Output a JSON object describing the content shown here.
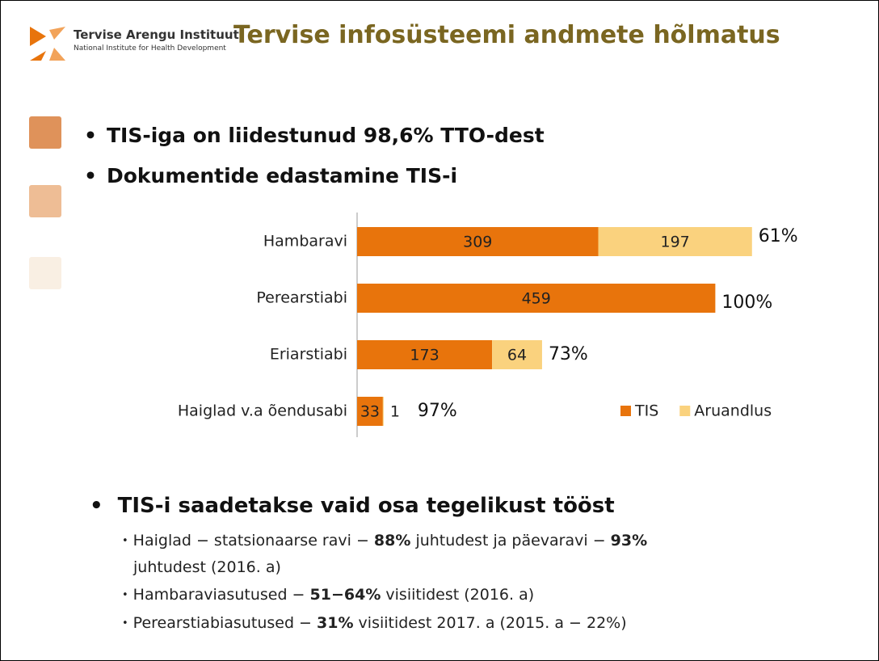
{
  "header": {
    "logo_name": "Tervise Arengu Instituut",
    "logo_subtitle": "National Institute for Health Development",
    "title": "Tervise infosüsteemi andmete hõlmatus"
  },
  "bullets": [
    "TIS-iga on liidestunud 98,6% TTO-dest",
    "Dokumentide edastamine TIS-i"
  ],
  "chart_data": {
    "type": "stacked-barh",
    "categories": [
      "Hambaravi",
      "Perearstiabi",
      "Eriarstiabi",
      "Haiglad v.a õendusabi"
    ],
    "series": [
      {
        "name": "TIS",
        "color": "#e8740c",
        "values": [
          309,
          459,
          173,
          33
        ]
      },
      {
        "name": "Aruandlus",
        "color": "#fad27e",
        "values": [
          197,
          null,
          64,
          1
        ]
      }
    ],
    "annotations": [
      "61%",
      "100%",
      "73%",
      "97%"
    ],
    "xlim": [
      0,
      500
    ],
    "legend": "lower right"
  },
  "bottom": {
    "heading": "TIS-i saadetakse vaid osa tegelikust tööst",
    "items": [
      [
        {
          "text": "Haiglad − statsionaarse ravi − ",
          "bold": false
        },
        {
          "text": "88%",
          "bold": true
        },
        {
          "text": " juhtudest ja päevaravi − ",
          "bold": false
        },
        {
          "text": "93%",
          "bold": true
        },
        {
          "text": " juhtudest (2016. a)",
          "bold": false
        }
      ],
      [
        {
          "text": "Hambaraviasutused − ",
          "bold": false
        },
        {
          "text": "51−64%",
          "bold": true
        },
        {
          "text": " visiitidest (2016. a)",
          "bold": false
        }
      ],
      [
        {
          "text": "Perearstiabiasutused − ",
          "bold": false
        },
        {
          "text": "31%",
          "bold": true
        },
        {
          "text": " visiitidest 2017. a (2015. a − 22%)",
          "bold": false
        }
      ]
    ]
  }
}
